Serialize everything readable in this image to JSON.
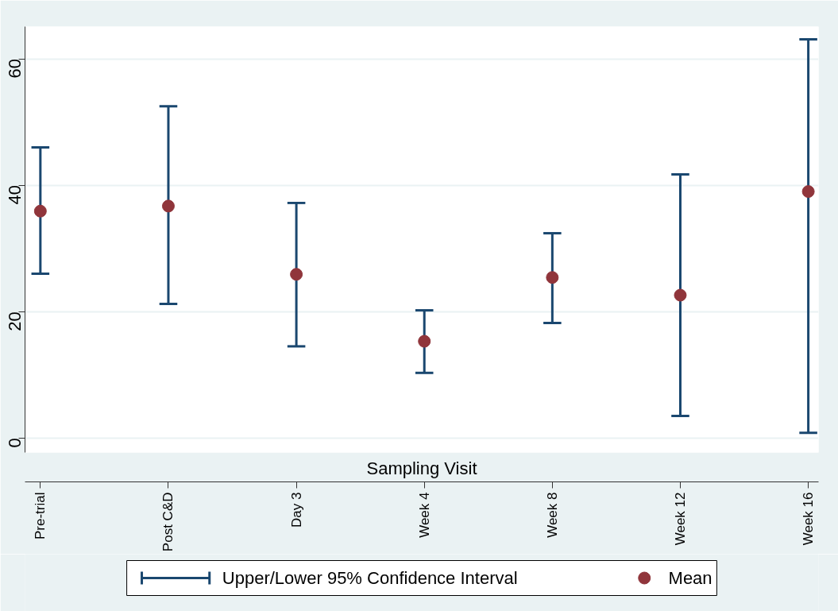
{
  "chart_data": {
    "type": "scatter",
    "xlabel": "Sampling Visit",
    "categories": [
      "Pre-trial",
      "Post C&D",
      "Day 3",
      "Week 4",
      "Week 8",
      "Week 12",
      "Week 16"
    ],
    "series": [
      {
        "name": "Mean",
        "color": "#90353b",
        "values": [
          35.9,
          36.7,
          25.9,
          15.3,
          25.4,
          22.6,
          39.0
        ],
        "errors": [
          [
            26.0,
            46.0
          ],
          [
            21.2,
            52.5
          ],
          [
            14.5,
            37.2
          ],
          [
            10.3,
            20.2
          ],
          [
            18.2,
            32.4
          ],
          [
            3.5,
            41.7
          ],
          [
            0.8,
            63.1
          ]
        ]
      }
    ],
    "annotations": [
      "Upper/Lower 95% Confidence Interval"
    ],
    "ylim": [
      -2.3,
      65.1
    ],
    "yticks": [
      0,
      20,
      40,
      60
    ],
    "grid": "y",
    "legend": "bottom",
    "marker": "circle"
  }
}
